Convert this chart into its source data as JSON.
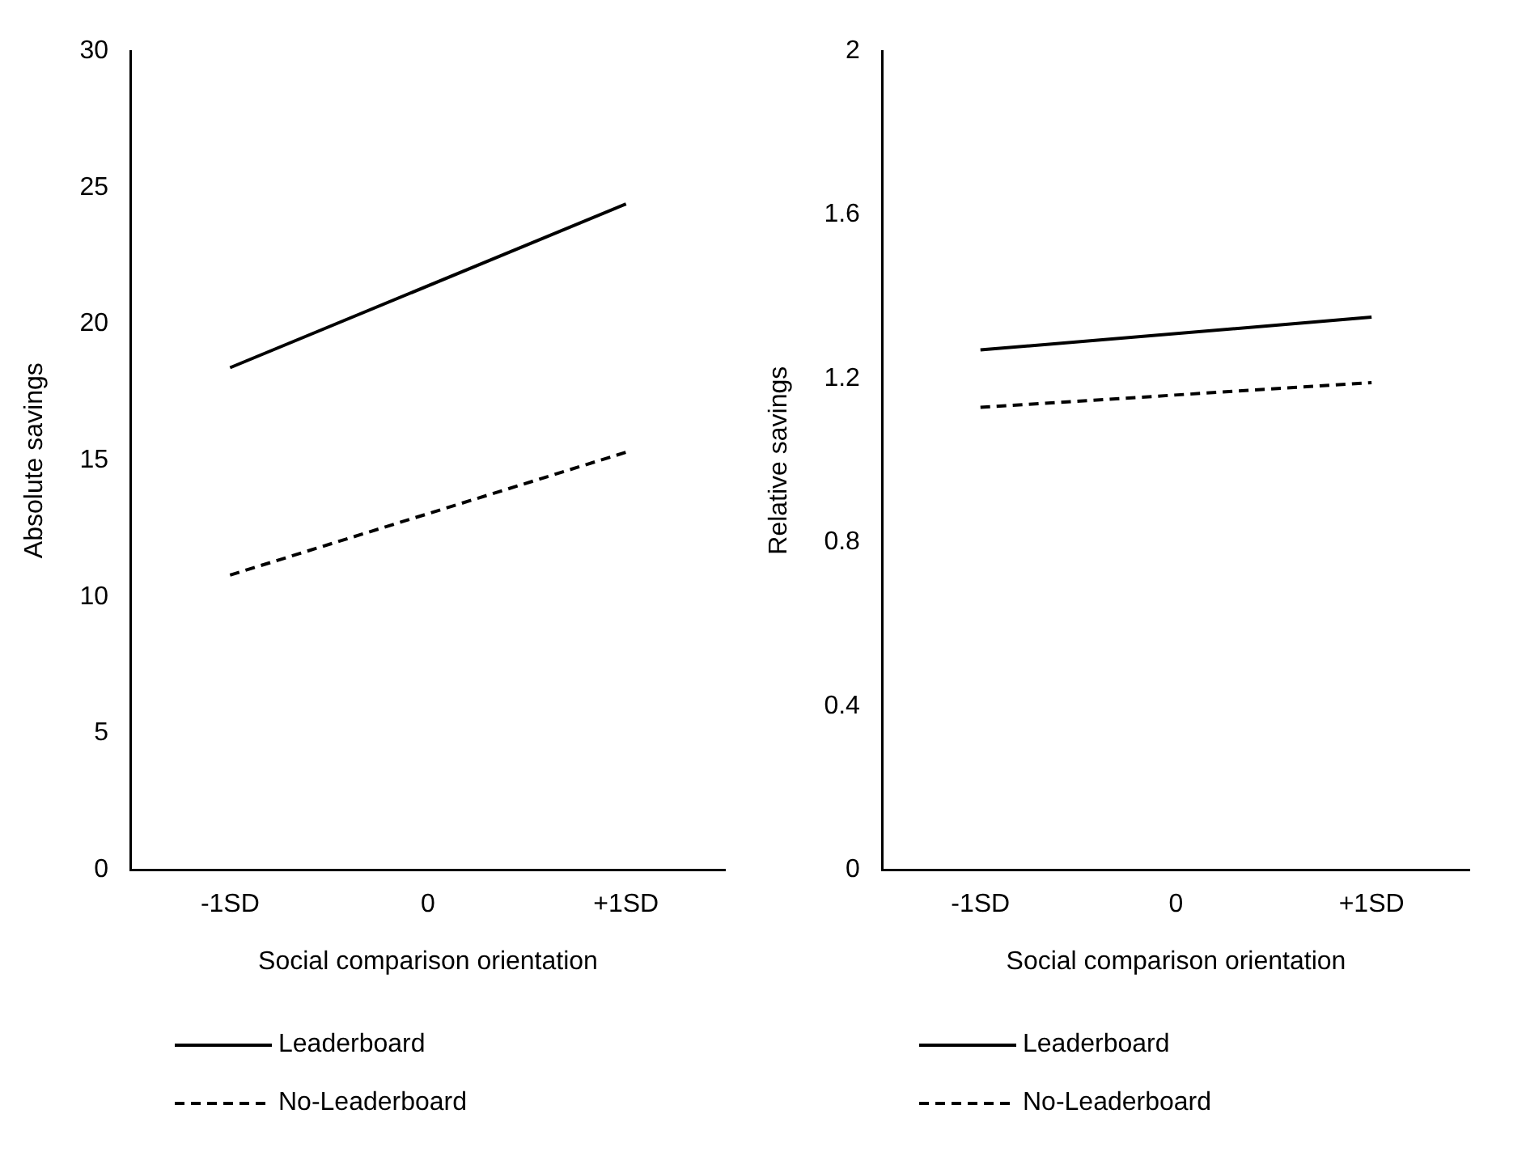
{
  "chart_data": [
    {
      "type": "line",
      "categories": [
        "-1SD",
        "0",
        "+1SD"
      ],
      "xlabel": "Social comparison orientation",
      "ylabel": "Absolute savings",
      "ylim": [
        0,
        30
      ],
      "yticks": [
        0,
        5,
        10,
        15,
        20,
        25,
        30
      ],
      "grid": false,
      "legend": "bottom",
      "marker": "none",
      "series": [
        {
          "name": "Leaderboard",
          "color": "#000000",
          "line_style": "solid",
          "values": [
            18.4,
            null,
            24.4
          ]
        },
        {
          "name": "No-Leaderboard",
          "color": "#000000",
          "line_style": "dashed",
          "values": [
            10.8,
            null,
            15.3
          ]
        }
      ]
    },
    {
      "type": "line",
      "categories": [
        "-1SD",
        "0",
        "+1SD"
      ],
      "xlabel": "Social comparison orientation",
      "ylabel": "Relative savings",
      "ylim": [
        0,
        2
      ],
      "yticks": [
        0,
        0.4,
        0.8,
        1.2,
        1.6,
        2
      ],
      "grid": false,
      "legend": "bottom",
      "marker": "none",
      "series": [
        {
          "name": "Leaderboard",
          "color": "#000000",
          "line_style": "solid",
          "values": [
            1.27,
            null,
            1.35
          ]
        },
        {
          "name": "No-Leaderboard",
          "color": "#000000",
          "line_style": "dashed",
          "values": [
            1.13,
            null,
            1.19
          ]
        }
      ]
    }
  ]
}
